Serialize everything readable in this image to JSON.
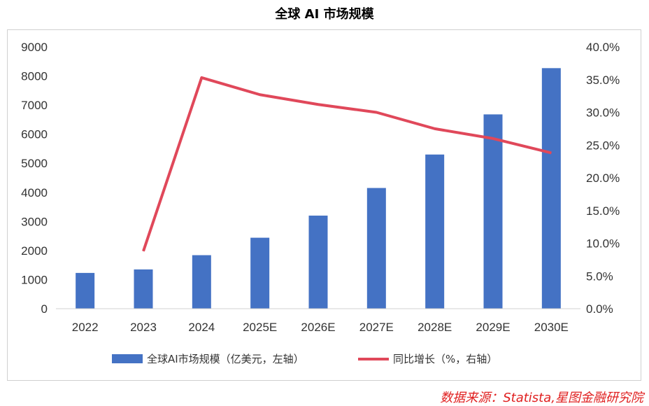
{
  "chart_data": {
    "type": "bar+line",
    "title": "全球 AI 市场规模",
    "categories": [
      "2022",
      "2023",
      "2024",
      "2025E",
      "2026E",
      "2027E",
      "2028E",
      "2029E",
      "2030E"
    ],
    "series": [
      {
        "name": "全球AI市场规模（亿美元，左轴）",
        "type": "bar",
        "axis": "left",
        "color": "#4472c4",
        "values": [
          1230,
          1350,
          1840,
          2440,
          3200,
          4150,
          5300,
          6680,
          8270
        ]
      },
      {
        "name": "同比增长（%，右轴）",
        "type": "line",
        "axis": "right",
        "color": "#e0485a",
        "values": [
          null,
          8.8,
          35.3,
          32.7,
          31.2,
          30.0,
          27.5,
          26.0,
          23.8
        ]
      }
    ],
    "y_left": {
      "min": 0,
      "max": 9000,
      "step": 1000,
      "ticks": [
        "0",
        "1000",
        "2000",
        "3000",
        "4000",
        "5000",
        "6000",
        "7000",
        "8000",
        "9000"
      ]
    },
    "y_right": {
      "min": 0,
      "max": 40,
      "step": 5,
      "ticks": [
        "0.0%",
        "5.0%",
        "10.0%",
        "15.0%",
        "20.0%",
        "25.0%",
        "30.0%",
        "35.0%",
        "40.0%"
      ]
    },
    "grid": false,
    "legend_position": "bottom"
  },
  "source": "数据来源：Statista,星图金融研究院"
}
